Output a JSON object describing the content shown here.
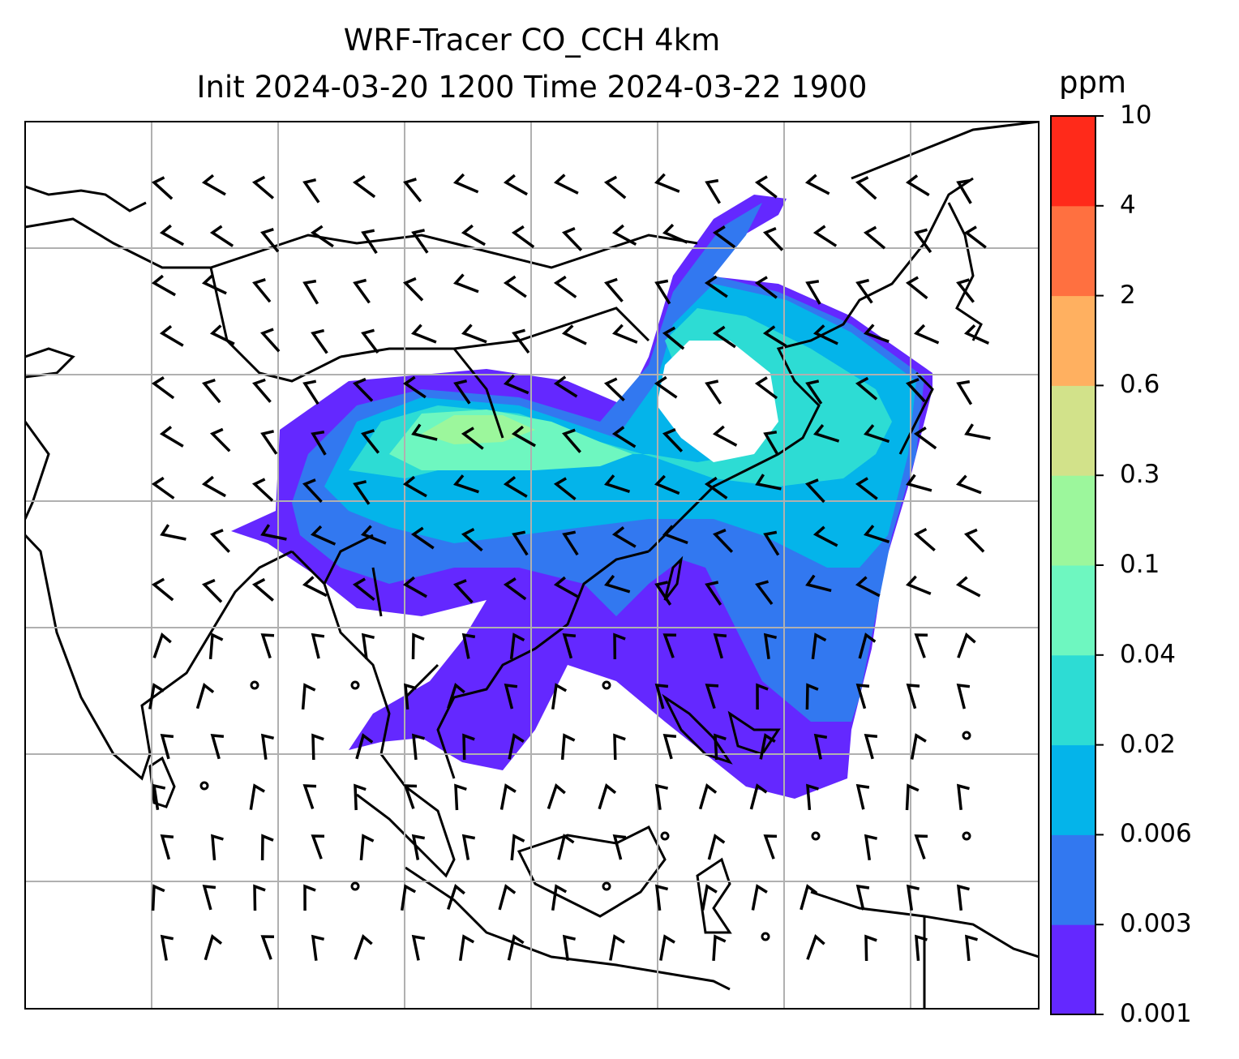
{
  "title": {
    "line1": "WRF-Tracer CO_CCH 4km",
    "line2": "Init 2024-03-20 1200 Time 2024-03-22 1900"
  },
  "colorbar": {
    "unit": "ppm",
    "levels": [
      "0.001",
      "0.003",
      "0.006",
      "0.02",
      "0.04",
      "0.1",
      "0.3",
      "0.6",
      "2",
      "4",
      "10"
    ],
    "colors": [
      "#6428ff",
      "#3278f0",
      "#04b4ea",
      "#2ddcd4",
      "#6ef7c0",
      "#9cf79c",
      "#d2e28a",
      "#ffb060",
      "#ff7040",
      "#ff2a1a"
    ]
  },
  "map": {
    "gridlines": true,
    "coastline_color": "#000000",
    "wind_barbs": true
  }
}
